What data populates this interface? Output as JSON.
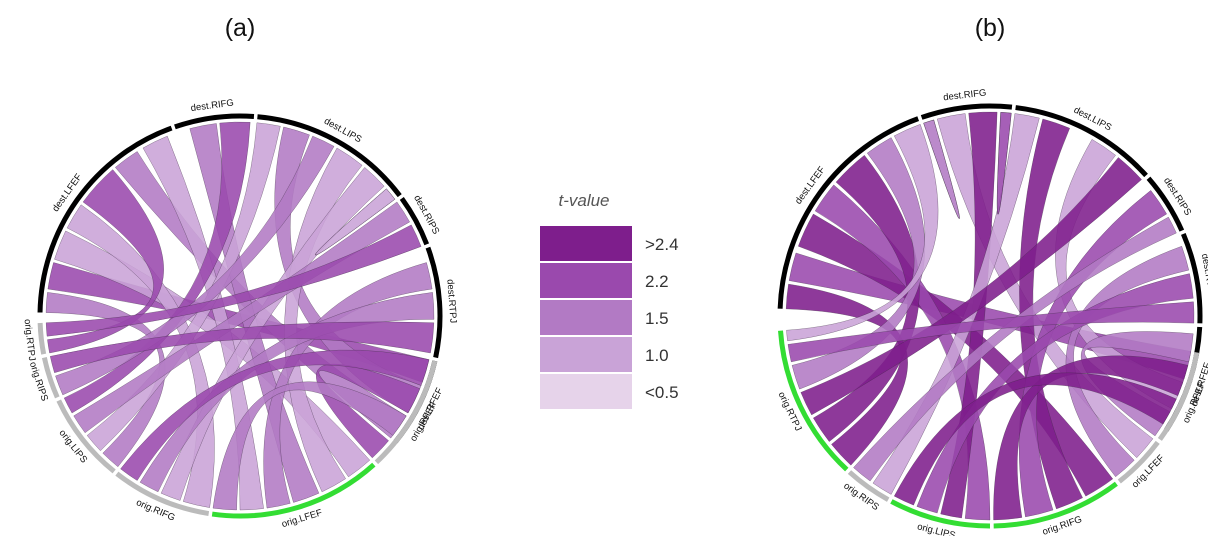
{
  "panels": [
    {
      "id": "a",
      "label": "(a)",
      "sectors": [
        {
          "name": "dest.LFEF",
          "start": 181,
          "end": 250,
          "color": "#000000"
        },
        {
          "name": "dest.RIFG",
          "start": 251,
          "end": 274,
          "color": "#000000"
        },
        {
          "name": "dest.LIPS",
          "start": 275,
          "end": 323,
          "color": "#000000"
        },
        {
          "name": "dest.RIPS",
          "start": 324,
          "end": 339,
          "color": "#000000"
        },
        {
          "name": "dest.RTPJ",
          "start": 340,
          "end": 372,
          "color": "#000000"
        },
        {
          "name": "dest.RFEF",
          "start": 373,
          "end": 399,
          "color": "#000000"
        },
        {
          "name": "orig.RFEF",
          "start": 13,
          "end": 47,
          "color": "#bbbbbb"
        },
        {
          "name": "orig.LFEF",
          "start": 48,
          "end": 98,
          "color": "#33dd33"
        },
        {
          "name": "orig.RIFG",
          "start": 99,
          "end": 128,
          "color": "#bbbbbb"
        },
        {
          "name": "orig.LIPS",
          "start": 129,
          "end": 155,
          "color": "#bbbbbb"
        },
        {
          "name": "orig.RIPS",
          "start": 156,
          "end": 168,
          "color": "#bbbbbb"
        },
        {
          "name": "orig.RTPJ",
          "start": 169,
          "end": 178,
          "color": "#bbbbbb"
        }
      ],
      "chords": [
        {
          "s": [
            13,
            20
          ],
          "d": [
            188,
            196
          ],
          "l": 4
        },
        {
          "s": [
            21,
            30
          ],
          "d": [
            283,
            291
          ],
          "l": 3
        },
        {
          "s": [
            31,
            39
          ],
          "d": [
            230,
            238
          ],
          "l": 3
        },
        {
          "s": [
            40,
            47
          ],
          "d": [
            382,
            390
          ],
          "l": 4
        },
        {
          "s": [
            48,
            56
          ],
          "d": [
            197,
            206
          ],
          "l": 2
        },
        {
          "s": [
            57,
            65
          ],
          "d": [
            300,
            309
          ],
          "l": 2
        },
        {
          "s": [
            66,
            74
          ],
          "d": [
            255,
            263
          ],
          "l": 3
        },
        {
          "s": [
            75,
            82
          ],
          "d": [
            344,
            352
          ],
          "l": 3
        },
        {
          "s": [
            83,
            90
          ],
          "d": [
            240,
            248
          ],
          "l": 2
        },
        {
          "s": [
            91,
            98
          ],
          "d": [
            391,
            398
          ],
          "l": 3
        },
        {
          "s": [
            99,
            107
          ],
          "d": [
            207,
            215
          ],
          "l": 2
        },
        {
          "s": [
            108,
            114
          ],
          "d": [
            310,
            318
          ],
          "l": 2
        },
        {
          "s": [
            115,
            121
          ],
          "d": [
            353,
            361
          ],
          "l": 3
        },
        {
          "s": [
            122,
            128
          ],
          "d": [
            373,
            381
          ],
          "l": 4
        },
        {
          "s": [
            129,
            135
          ],
          "d": [
            181,
            187
          ],
          "l": 3
        },
        {
          "s": [
            136,
            142
          ],
          "d": [
            275,
            282
          ],
          "l": 2
        },
        {
          "s": [
            143,
            149
          ],
          "d": [
            324,
            331
          ],
          "l": 3
        },
        {
          "s": [
            150,
            155
          ],
          "d": [
            264,
            273
          ],
          "l": 4
        },
        {
          "s": [
            156,
            162
          ],
          "d": [
            292,
            299
          ],
          "l": 3
        },
        {
          "s": [
            163,
            168
          ],
          "d": [
            362,
            371
          ],
          "l": 4
        },
        {
          "s": [
            169,
            173
          ],
          "d": [
            216,
            229
          ],
          "l": 4
        },
        {
          "s": [
            174,
            178
          ],
          "d": [
            332,
            339
          ],
          "l": 4
        },
        {
          "s": [
            319,
            323
          ],
          "d": [
            319,
            323
          ],
          "l": 2
        }
      ]
    },
    {
      "id": "b",
      "label": "(b)",
      "sectors": [
        {
          "name": "dest.LFEF",
          "start": 182,
          "end": 250,
          "color": "#000000"
        },
        {
          "name": "dest.RIFG",
          "start": 251,
          "end": 276,
          "color": "#000000"
        },
        {
          "name": "dest.LIPS",
          "start": 277,
          "end": 318,
          "color": "#000000"
        },
        {
          "name": "dest.RIPS",
          "start": 319,
          "end": 336,
          "color": "#000000"
        },
        {
          "name": "dest.RTPJ",
          "start": 337,
          "end": 362,
          "color": "#000000"
        },
        {
          "name": "dest.RFEF",
          "start": 363,
          "end": 393,
          "color": "#000000"
        },
        {
          "name": "orig.RFEF",
          "start": 10,
          "end": 36,
          "color": "#bbbbbb"
        },
        {
          "name": "orig.LFEF",
          "start": 37,
          "end": 52,
          "color": "#bbbbbb"
        },
        {
          "name": "orig.RIFG",
          "start": 53,
          "end": 89,
          "color": "#33dd33"
        },
        {
          "name": "orig.LIPS",
          "start": 90,
          "end": 118,
          "color": "#33dd33"
        },
        {
          "name": "orig.RIPS",
          "start": 119,
          "end": 132,
          "color": "#bbbbbb"
        },
        {
          "name": "orig.RTPJ",
          "start": 133,
          "end": 176,
          "color": "#33dd33"
        }
      ],
      "chords": [
        {
          "s": [
            10,
            18
          ],
          "d": [
            190,
            198
          ],
          "l": 4
        },
        {
          "s": [
            19,
            27
          ],
          "d": [
            300,
            308
          ],
          "l": 2
        },
        {
          "s": [
            28,
            36
          ],
          "d": [
            365,
            373
          ],
          "l": 3
        },
        {
          "s": [
            37,
            44
          ],
          "d": [
            255,
            263
          ],
          "l": 2
        },
        {
          "s": [
            45,
            52
          ],
          "d": [
            340,
            347
          ],
          "l": 3
        },
        {
          "s": [
            53,
            62
          ],
          "d": [
            200,
            210
          ],
          "l": 5
        },
        {
          "s": [
            63,
            71
          ],
          "d": [
            285,
            293
          ],
          "l": 5
        },
        {
          "s": [
            72,
            80
          ],
          "d": [
            322,
            330
          ],
          "l": 4
        },
        {
          "s": [
            81,
            89
          ],
          "d": [
            374,
            383
          ],
          "l": 5
        },
        {
          "s": [
            90,
            97
          ],
          "d": [
            211,
            220
          ],
          "l": 4
        },
        {
          "s": [
            98,
            104
          ],
          "d": [
            264,
            272
          ],
          "l": 5
        },
        {
          "s": [
            105,
            111
          ],
          "d": [
            348,
            355
          ],
          "l": 4
        },
        {
          "s": [
            112,
            118
          ],
          "d": [
            384,
            392
          ],
          "l": 5
        },
        {
          "s": [
            119,
            125
          ],
          "d": [
            277,
            284
          ],
          "l": 2
        },
        {
          "s": [
            126,
            132
          ],
          "d": [
            331,
            336
          ],
          "l": 3
        },
        {
          "s": [
            133,
            141
          ],
          "d": [
            182,
            189
          ],
          "l": 5
        },
        {
          "s": [
            142,
            150
          ],
          "d": [
            221,
            232
          ],
          "l": 5
        },
        {
          "s": [
            151,
            158
          ],
          "d": [
            309,
            318
          ],
          "l": 5
        },
        {
          "s": [
            159,
            166
          ],
          "d": [
            233,
            241
          ],
          "l": 3
        },
        {
          "s": [
            167,
            172
          ],
          "d": [
            356,
            362
          ],
          "l": 4
        },
        {
          "s": [
            173,
            176
          ],
          "d": [
            242,
            250
          ],
          "l": 2
        },
        {
          "s": [
            251,
            254
          ],
          "d": [
            251,
            254
          ],
          "l": 3
        },
        {
          "s": [
            273,
            276
          ],
          "d": [
            273,
            276
          ],
          "l": 4
        }
      ]
    }
  ],
  "legend": {
    "title": "t-value",
    "items": [
      {
        "label": ">2.4",
        "color": "#7e1e8c"
      },
      {
        "label": "2.2",
        "color": "#9a49ad"
      },
      {
        "label": "1.5",
        "color": "#b27ac4"
      },
      {
        "label": "1.0",
        "color": "#c9a3d7"
      },
      {
        "label": "<0.5",
        "color": "#e6d3ea"
      }
    ]
  }
}
